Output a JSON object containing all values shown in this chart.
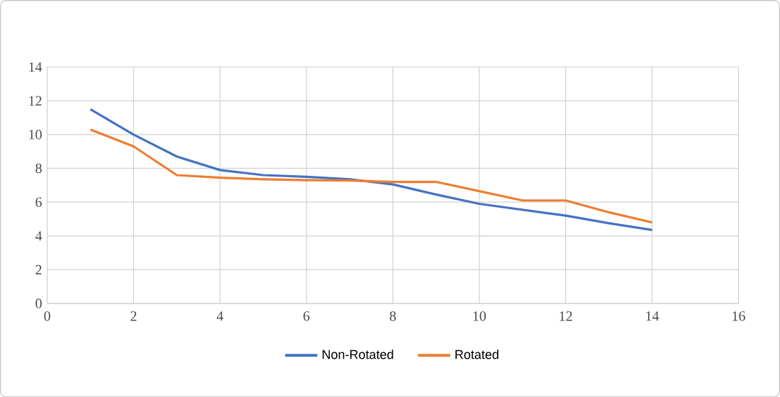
{
  "chart_data": {
    "type": "line",
    "x": [
      1,
      2,
      3,
      4,
      5,
      6,
      7,
      8,
      9,
      10,
      11,
      12,
      13,
      14
    ],
    "series": [
      {
        "name": "Non-Rotated",
        "color": "#4472c4",
        "values": [
          11.5,
          10.0,
          8.7,
          7.9,
          7.6,
          7.5,
          7.35,
          7.05,
          6.45,
          5.9,
          5.55,
          5.2,
          4.75,
          4.35
        ]
      },
      {
        "name": "Rotated",
        "color": "#ed7d31",
        "values": [
          10.3,
          9.3,
          7.6,
          7.45,
          7.35,
          7.3,
          7.28,
          7.2,
          7.2,
          6.65,
          6.1,
          6.1,
          5.4,
          4.8
        ]
      }
    ],
    "xlim": [
      0,
      16
    ],
    "xticks": [
      0,
      2,
      4,
      6,
      8,
      10,
      12,
      14,
      16
    ],
    "ylim": [
      0,
      14
    ],
    "yticks": [
      0,
      2,
      4,
      6,
      8,
      10,
      12,
      14
    ],
    "grid": true,
    "legend": "bottom",
    "marker": "none",
    "line_style": "solid"
  }
}
